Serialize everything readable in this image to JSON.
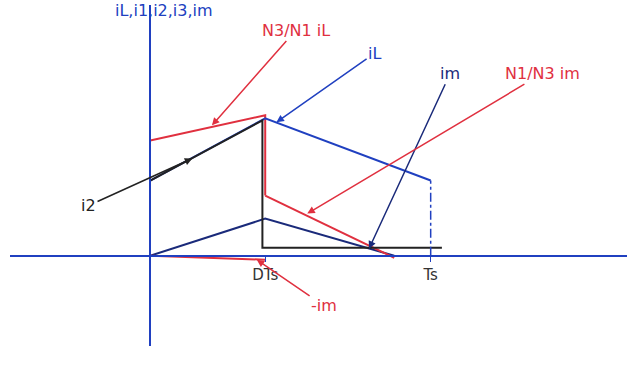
{
  "chart_data": {
    "type": "line",
    "y_label": "iL,i1,i2,i3,im",
    "xlim": [
      -0.5,
      1.7
    ],
    "ylim": [
      -0.9,
      2.5
    ],
    "xticks": [
      {
        "value": 0.41,
        "label": "DTs"
      },
      {
        "value": 1,
        "label": "Ts"
      }
    ],
    "yticks": [],
    "tick_labels": "x",
    "grid": false,
    "series": [
      {
        "name": "N3/N1 iL",
        "color": "#e0303f",
        "line_style": "solid",
        "x": [
          0,
          0.41,
          0.41
        ],
        "values": [
          1.15,
          1.4,
          0.6
        ]
      },
      {
        "name": "iL",
        "color": "#2040c0",
        "line_style": "solid",
        "x": [
          0,
          0.41,
          1
        ],
        "values": [
          0.75,
          1.37,
          0.75
        ]
      },
      {
        "name": "im",
        "color": "#1a2a7a",
        "line_style": "solid",
        "x": [
          0,
          0.41,
          0.87
        ],
        "values": [
          0,
          0.37,
          0
        ]
      },
      {
        "name": "N1/N3 im",
        "color": "#e0303f",
        "line_style": "solid",
        "x": [
          0.41,
          0.87
        ],
        "values": [
          0.6,
          -0.02
        ]
      },
      {
        "name": "i2",
        "color": "#222222",
        "line_style": "solid",
        "x": [
          0,
          0.4,
          0.4,
          1.04
        ],
        "values": [
          0.75,
          1.35,
          0.08,
          0.08
        ]
      },
      {
        "name": "-im",
        "color": "#e0303f",
        "line_style": "solid",
        "x": [
          0,
          0.41
        ],
        "values": [
          0,
          -0.04
        ]
      }
    ]
  }
}
